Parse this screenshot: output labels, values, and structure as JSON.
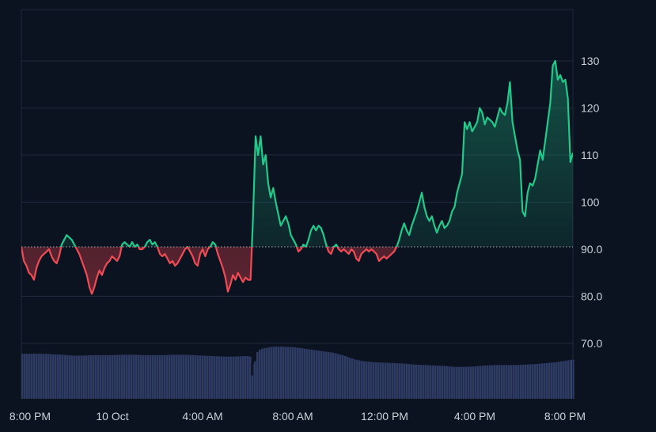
{
  "chart_data": {
    "type": "area",
    "baseline": 90.5,
    "ylim": [
      58.0,
      142.0
    ],
    "y_ticks": [
      70.0,
      80.0,
      90.0,
      100,
      110,
      120,
      130
    ],
    "y_tick_labels": [
      "70.0",
      "80.0",
      "90.0",
      "100",
      "110",
      "120",
      "130"
    ],
    "x_tick_labels": [
      "8:00 PM",
      "10 Oct",
      "4:00 AM",
      "8:00 AM",
      "12:00 PM",
      "4:00 PM",
      "8:00 PM"
    ],
    "grid": true,
    "colors": {
      "up": "#22c98a",
      "down": "#ef4b55",
      "volume": "#2e3b63",
      "grid": "#1f2b3e",
      "text": "#c9d1d9",
      "baseline": "#c9d1d9"
    },
    "price": [
      [
        0,
        90.5
      ],
      [
        1,
        87.5
      ],
      [
        2,
        86.5
      ],
      [
        3,
        85
      ],
      [
        4,
        84.5
      ],
      [
        5,
        83.5
      ],
      [
        6,
        86
      ],
      [
        7,
        87.5
      ],
      [
        8,
        88.5
      ],
      [
        9,
        89
      ],
      [
        10,
        89.5
      ],
      [
        11,
        90
      ],
      [
        12,
        88.5
      ],
      [
        13,
        87.5
      ],
      [
        14,
        87
      ],
      [
        15,
        88.5
      ],
      [
        16,
        91
      ],
      [
        17,
        92
      ],
      [
        18,
        93
      ],
      [
        19,
        92.5
      ],
      [
        20,
        92
      ],
      [
        21,
        91
      ],
      [
        22,
        90
      ],
      [
        23,
        89
      ],
      [
        24,
        87.5
      ],
      [
        25,
        86
      ],
      [
        26,
        84.5
      ],
      [
        27,
        82
      ],
      [
        28,
        80.5
      ],
      [
        29,
        82
      ],
      [
        30,
        84
      ],
      [
        31,
        85.5
      ],
      [
        32,
        84.5
      ],
      [
        33,
        86
      ],
      [
        34,
        87
      ],
      [
        35,
        87.5
      ],
      [
        36,
        88.5
      ],
      [
        37,
        88
      ],
      [
        38,
        87.5
      ],
      [
        39,
        88.5
      ],
      [
        40,
        91
      ],
      [
        41,
        91.5
      ],
      [
        42,
        91
      ],
      [
        43,
        90.5
      ],
      [
        44,
        91.5
      ],
      [
        45,
        90.5
      ],
      [
        46,
        91
      ],
      [
        47,
        90
      ],
      [
        48,
        90
      ],
      [
        49,
        90.5
      ],
      [
        50,
        91.5
      ],
      [
        51,
        92
      ],
      [
        52,
        91
      ],
      [
        53,
        91.5
      ],
      [
        54,
        90.5
      ],
      [
        55,
        89
      ],
      [
        56,
        88.5
      ],
      [
        57,
        89
      ],
      [
        58,
        88
      ],
      [
        59,
        87
      ],
      [
        60,
        87.5
      ],
      [
        61,
        86.5
      ],
      [
        62,
        87
      ],
      [
        63,
        88
      ],
      [
        64,
        89
      ],
      [
        65,
        90
      ],
      [
        66,
        90.5
      ],
      [
        67,
        89.5
      ],
      [
        68,
        88.5
      ],
      [
        69,
        87
      ],
      [
        70,
        86.5
      ],
      [
        71,
        89
      ],
      [
        72,
        90
      ],
      [
        73,
        88.5
      ],
      [
        74,
        90
      ],
      [
        75,
        90.5
      ],
      [
        76,
        91.5
      ],
      [
        77,
        91
      ],
      [
        78,
        89
      ],
      [
        79,
        87.5
      ],
      [
        80,
        86
      ],
      [
        81,
        84
      ],
      [
        82,
        81
      ],
      [
        83,
        82.5
      ],
      [
        84,
        84.5
      ],
      [
        85,
        83.5
      ],
      [
        86,
        85
      ],
      [
        87,
        84
      ],
      [
        88,
        83
      ],
      [
        89,
        84
      ],
      [
        90,
        83.5
      ],
      [
        91,
        83.5
      ],
      [
        92,
        97
      ],
      [
        93,
        114
      ],
      [
        94,
        110
      ],
      [
        95,
        114
      ],
      [
        96,
        108
      ],
      [
        97,
        110
      ],
      [
        98,
        104
      ],
      [
        99,
        101
      ],
      [
        100,
        103
      ],
      [
        101,
        100
      ],
      [
        102,
        97.5
      ],
      [
        103,
        95
      ],
      [
        104,
        96
      ],
      [
        105,
        97
      ],
      [
        106,
        95.5
      ],
      [
        107,
        93
      ],
      [
        108,
        92
      ],
      [
        109,
        91
      ],
      [
        110,
        89.5
      ],
      [
        111,
        90
      ],
      [
        112,
        91
      ],
      [
        113,
        90.5
      ],
      [
        114,
        92
      ],
      [
        115,
        94
      ],
      [
        116,
        95
      ],
      [
        117,
        94
      ],
      [
        118,
        95
      ],
      [
        119,
        94.5
      ],
      [
        120,
        93
      ],
      [
        121,
        91
      ],
      [
        122,
        89.5
      ],
      [
        123,
        89
      ],
      [
        124,
        90.5
      ],
      [
        125,
        91
      ],
      [
        126,
        90
      ],
      [
        127,
        89.5
      ],
      [
        128,
        90
      ],
      [
        129,
        89.5
      ],
      [
        130,
        89
      ],
      [
        131,
        90
      ],
      [
        132,
        89.5
      ],
      [
        133,
        88
      ],
      [
        134,
        87.5
      ],
      [
        135,
        89
      ],
      [
        136,
        89.5
      ],
      [
        137,
        90
      ],
      [
        138,
        89.5
      ],
      [
        139,
        90
      ],
      [
        140,
        89.5
      ],
      [
        141,
        89
      ],
      [
        142,
        87.5
      ],
      [
        143,
        88
      ],
      [
        144,
        88.5
      ],
      [
        145,
        88
      ],
      [
        146,
        88.5
      ],
      [
        147,
        89
      ],
      [
        148,
        89.5
      ],
      [
        149,
        90.5
      ],
      [
        150,
        92
      ],
      [
        151,
        94
      ],
      [
        152,
        95.5
      ],
      [
        153,
        94
      ],
      [
        154,
        93
      ],
      [
        155,
        95
      ],
      [
        156,
        96.5
      ],
      [
        157,
        98
      ],
      [
        158,
        100
      ],
      [
        159,
        102
      ],
      [
        160,
        99
      ],
      [
        161,
        97
      ],
      [
        162,
        96
      ],
      [
        163,
        97
      ],
      [
        164,
        95
      ],
      [
        165,
        93.5
      ],
      [
        166,
        95
      ],
      [
        167,
        96
      ],
      [
        168,
        94.5
      ],
      [
        169,
        95
      ],
      [
        170,
        96
      ],
      [
        171,
        98
      ],
      [
        172,
        99
      ],
      [
        173,
        102
      ],
      [
        174,
        104
      ],
      [
        175,
        106
      ],
      [
        176,
        117
      ],
      [
        177,
        115.5
      ],
      [
        178,
        117
      ],
      [
        179,
        115
      ],
      [
        180,
        116
      ],
      [
        181,
        117
      ],
      [
        182,
        120
      ],
      [
        183,
        119
      ],
      [
        184,
        116.5
      ],
      [
        185,
        118
      ],
      [
        186,
        117.5
      ],
      [
        187,
        117
      ],
      [
        188,
        116
      ],
      [
        189,
        118
      ],
      [
        190,
        120
      ],
      [
        191,
        119
      ],
      [
        192,
        118.5
      ],
      [
        193,
        121
      ],
      [
        194,
        125.5
      ],
      [
        195,
        117
      ],
      [
        196,
        114
      ],
      [
        197,
        111
      ],
      [
        198,
        109
      ],
      [
        199,
        98
      ],
      [
        200,
        97
      ],
      [
        201,
        102
      ],
      [
        202,
        104
      ],
      [
        203,
        103.5
      ],
      [
        204,
        105
      ],
      [
        205,
        108
      ],
      [
        206,
        111
      ],
      [
        207,
        109
      ],
      [
        208,
        113
      ],
      [
        209,
        117
      ],
      [
        210,
        121
      ],
      [
        211,
        129
      ],
      [
        212,
        130
      ],
      [
        213,
        126
      ],
      [
        214,
        127
      ],
      [
        215,
        125.5
      ],
      [
        216,
        126
      ],
      [
        217,
        122
      ],
      [
        218,
        108.5
      ],
      [
        219,
        110.5
      ]
    ],
    "volume": [
      [
        0,
        67.8
      ],
      [
        4,
        67.8
      ],
      [
        8,
        67.8
      ],
      [
        12,
        67.7
      ],
      [
        16,
        67.6
      ],
      [
        20,
        67.4
      ],
      [
        24,
        67.4
      ],
      [
        28,
        67.5
      ],
      [
        32,
        67.5
      ],
      [
        36,
        67.5
      ],
      [
        40,
        67.6
      ],
      [
        44,
        67.6
      ],
      [
        48,
        67.5
      ],
      [
        52,
        67.5
      ],
      [
        56,
        67.5
      ],
      [
        60,
        67.6
      ],
      [
        64,
        67.6
      ],
      [
        68,
        67.5
      ],
      [
        72,
        67.4
      ],
      [
        76,
        67.3
      ],
      [
        80,
        67.2
      ],
      [
        84,
        67.2
      ],
      [
        88,
        67.3
      ],
      [
        90,
        67.3
      ],
      [
        91,
        67.1
      ],
      [
        92,
        64.5
      ],
      [
        93,
        67.8
      ],
      [
        94,
        68.6
      ],
      [
        96,
        69.0
      ],
      [
        100,
        69.3
      ],
      [
        104,
        69.3
      ],
      [
        108,
        69.2
      ],
      [
        112,
        68.9
      ],
      [
        116,
        68.6
      ],
      [
        120,
        68.3
      ],
      [
        124,
        68.0
      ],
      [
        128,
        67.4
      ],
      [
        132,
        66.6
      ],
      [
        136,
        66.2
      ],
      [
        140,
        66.0
      ],
      [
        144,
        65.9
      ],
      [
        148,
        65.8
      ],
      [
        152,
        65.7
      ],
      [
        156,
        65.5
      ],
      [
        160,
        65.4
      ],
      [
        164,
        65.3
      ],
      [
        168,
        65.2
      ],
      [
        172,
        65.0
      ],
      [
        176,
        65.0
      ],
      [
        180,
        65.1
      ],
      [
        184,
        65.3
      ],
      [
        188,
        65.4
      ],
      [
        192,
        65.4
      ],
      [
        196,
        65.4
      ],
      [
        200,
        65.5
      ],
      [
        204,
        65.6
      ],
      [
        208,
        65.8
      ],
      [
        212,
        66.0
      ],
      [
        216,
        66.3
      ],
      [
        218,
        66.5
      ],
      [
        219,
        66.5
      ]
    ],
    "volume_dip": {
      "x": 91.5,
      "value": 63.2
    }
  }
}
